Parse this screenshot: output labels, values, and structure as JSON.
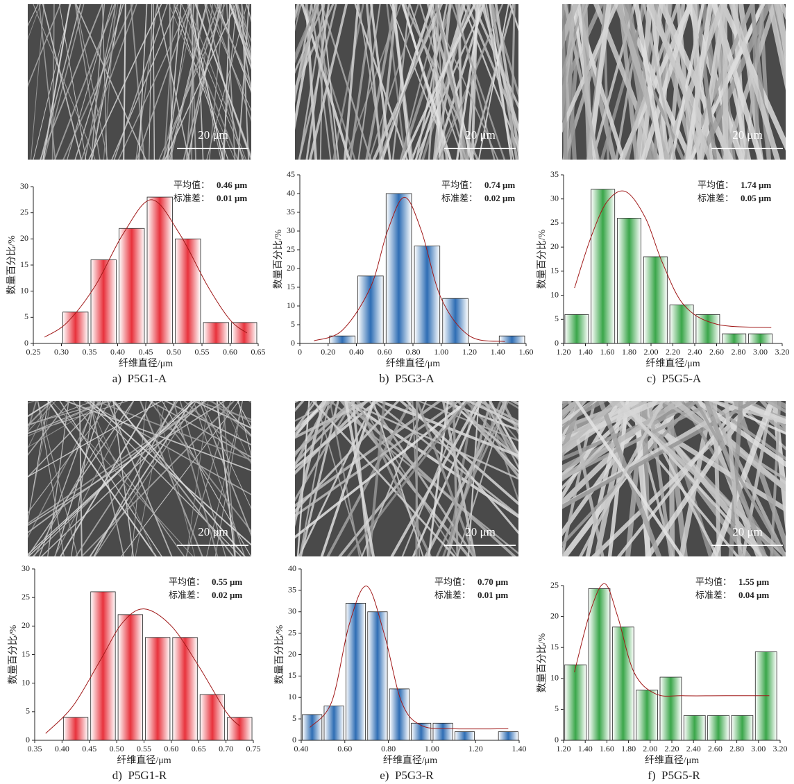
{
  "chart_data": [
    {
      "type": "histogram",
      "caption": "a)  P5G1-A",
      "scale_bar": "20 μm",
      "xlabel": "纤维直径/μm",
      "ylabel": "数量百分比/%",
      "annotations": {
        "mean_label": "平均值：",
        "mean": "0.46 μm",
        "sd_label": "标准差：",
        "sd": "0.01 μm"
      },
      "color": "#e8323c",
      "bins": [
        0.3,
        0.35,
        0.4,
        0.45,
        0.5,
        0.55,
        0.6,
        0.65
      ],
      "values": [
        6,
        16,
        22,
        28,
        20,
        4,
        4
      ],
      "fit": {
        "x": [
          0.27,
          0.31,
          0.36,
          0.41,
          0.46,
          0.51,
          0.56,
          0.6,
          0.63
        ],
        "y": [
          1.2,
          4,
          11,
          21,
          27.5,
          21,
          11,
          4.5,
          2
        ]
      },
      "xlim": [
        0.25,
        0.65
      ],
      "xticks": [
        0.25,
        {
          "value": 0.3,
          "label": "0.30"
        },
        0.35,
        {
          "value": 0.4,
          "label": "0.40"
        },
        0.45,
        {
          "value": 0.5,
          "label": "0.50"
        },
        0.55,
        {
          "value": 0.6,
          "label": "0.60"
        },
        0.65
      ],
      "ylim": [
        0,
        30
      ],
      "yticks": [
        0,
        5,
        10,
        15,
        20,
        25,
        30
      ]
    },
    {
      "type": "histogram",
      "caption": "b)  P5G3-A",
      "scale_bar": "20 μm",
      "xlabel": "纤维直径/μm",
      "ylabel": "数量百分比/%",
      "annotations": {
        "mean_label": "平均值：",
        "mean": "0.74 μm",
        "sd_label": "标准差：",
        "sd": "0.02 μm"
      },
      "color": "#2e6db4",
      "bins": [
        0.2,
        0.4,
        0.6,
        0.8,
        1.0,
        1.2,
        1.4,
        1.6
      ],
      "values": [
        2,
        18,
        40,
        26,
        12,
        0,
        2
      ],
      "fit": {
        "x": [
          0.1,
          0.3,
          0.5,
          0.62,
          0.74,
          0.86,
          1.0,
          1.2,
          1.45
        ],
        "y": [
          0.7,
          3.5,
          15,
          30,
          39,
          30,
          12,
          2,
          0.5
        ]
      },
      "xlim": [
        0,
        1.6
      ],
      "xticks": [
        0,
        {
          "value": 0.2,
          "label": "0.20"
        },
        {
          "value": 0.4,
          "label": "0.40"
        },
        {
          "value": 0.6,
          "label": "0.60"
        },
        {
          "value": 0.8,
          "label": "0.80"
        },
        {
          "value": 1.0,
          "label": "1.00"
        },
        {
          "value": 1.2,
          "label": "1.20"
        },
        {
          "value": 1.4,
          "label": "1.40"
        },
        {
          "value": 1.6,
          "label": "1.60"
        }
      ],
      "ylim": [
        0,
        45
      ],
      "yticks": [
        0,
        5,
        10,
        15,
        20,
        25,
        30,
        35,
        40,
        45
      ]
    },
    {
      "type": "histogram",
      "caption": "c)  P5G5-A",
      "scale_bar": "20 μm",
      "xlabel": "纤维直径/μm",
      "ylabel": "数量百分比/%",
      "annotations": {
        "mean_label": "平均值：",
        "mean": "1.74 μm",
        "sd_label": "标准差：",
        "sd": "0.05 μm"
      },
      "color": "#3aa64a",
      "bins": [
        1.2,
        1.44,
        1.68,
        1.92,
        2.16,
        2.4,
        2.64,
        2.88,
        3.12
      ],
      "values": [
        6,
        32,
        26,
        18,
        8,
        6,
        2,
        2
      ],
      "fit": {
        "x": [
          1.3,
          1.45,
          1.6,
          1.77,
          1.95,
          2.1,
          2.3,
          2.6,
          3.1
        ],
        "y": [
          11.5,
          22,
          29.5,
          31.5,
          26,
          17,
          8,
          4,
          3.3
        ]
      },
      "xlim": [
        1.2,
        3.2
      ],
      "xticks": [
        {
          "value": 1.2,
          "label": "1.20"
        },
        {
          "value": 1.4,
          "label": "1.40"
        },
        {
          "value": 1.6,
          "label": "1.60"
        },
        {
          "value": 1.8,
          "label": "1.80"
        },
        {
          "value": 2.0,
          "label": "2.00"
        },
        {
          "value": 2.2,
          "label": "2.20"
        },
        {
          "value": 2.4,
          "label": "2.40"
        },
        {
          "value": 2.6,
          "label": "2.60"
        },
        {
          "value": 2.8,
          "label": "2.80"
        },
        {
          "value": 3.0,
          "label": "3.00"
        },
        {
          "value": 3.2,
          "label": "3.20"
        }
      ],
      "ylim": [
        0,
        35
      ],
      "yticks": [
        0,
        5,
        10,
        15,
        20,
        25,
        30,
        35
      ]
    },
    {
      "type": "histogram",
      "caption": "d)  P5G1-R",
      "scale_bar": "20 μm",
      "xlabel": "纤维直径/μm",
      "ylabel": "数量百分比/%",
      "annotations": {
        "mean_label": "平均值：",
        "mean": "0.55 μm",
        "sd_label": "标准差：",
        "sd": "0.02 μm"
      },
      "color": "#e8323c",
      "bins": [
        0.4,
        0.45,
        0.5,
        0.55,
        0.6,
        0.65,
        0.7,
        0.75
      ],
      "values": [
        4,
        26,
        22,
        18,
        18,
        8,
        4
      ],
      "fit": {
        "x": [
          0.37,
          0.42,
          0.47,
          0.51,
          0.55,
          0.6,
          0.65,
          0.7,
          0.725
        ],
        "y": [
          1.2,
          6,
          14,
          20.5,
          23,
          20,
          13,
          5,
          2.5
        ]
      },
      "xlim": [
        0.35,
        0.75
      ],
      "xticks": [
        0.35,
        {
          "value": 0.4,
          "label": "0.40"
        },
        0.45,
        {
          "value": 0.5,
          "label": "0.50"
        },
        0.55,
        {
          "value": 0.6,
          "label": "0.60"
        },
        0.65,
        {
          "value": 0.7,
          "label": "0.70"
        },
        0.75
      ],
      "ylim": [
        0,
        30
      ],
      "yticks": [
        0,
        5,
        10,
        15,
        20,
        25,
        30
      ]
    },
    {
      "type": "histogram",
      "caption": "e)  P5G3-R",
      "scale_bar": "20 μm",
      "xlabel": "纤维直径/μm",
      "ylabel": "数量百分比/%",
      "annotations": {
        "mean_label": "平均值：",
        "mean": "0.70 μm",
        "sd_label": "标准差：",
        "sd": "0.01 μm"
      },
      "color": "#2e6db4",
      "bins": [
        0.4,
        0.5,
        0.6,
        0.7,
        0.8,
        0.9,
        1.0,
        1.1,
        1.2,
        1.3,
        1.4
      ],
      "values": [
        6,
        8,
        32,
        30,
        12,
        4,
        4,
        2,
        0,
        2
      ],
      "fit": {
        "x": [
          0.44,
          0.54,
          0.62,
          0.7,
          0.78,
          0.86,
          0.95,
          1.1,
          1.35
        ],
        "y": [
          3,
          9,
          27,
          36,
          25,
          9,
          3.5,
          2.7,
          2.7
        ]
      },
      "xlim": [
        0.4,
        1.4
      ],
      "xticks": [
        {
          "value": 0.4,
          "label": "0.40"
        },
        {
          "value": 0.6,
          "label": "0.60"
        },
        {
          "value": 0.8,
          "label": "0.80"
        },
        {
          "value": 1.0,
          "label": "1.00"
        },
        {
          "value": 1.2,
          "label": "1.20"
        },
        {
          "value": 1.4,
          "label": "1.40"
        }
      ],
      "ylim": [
        0,
        40
      ],
      "yticks": [
        0,
        5,
        10,
        15,
        20,
        25,
        30,
        35,
        40
      ]
    },
    {
      "type": "histogram",
      "caption": "f)  P5G5-R",
      "scale_bar": "20 μm",
      "xlabel": "纤维直径/μm",
      "ylabel": "数量百分比/%",
      "annotations": {
        "mean_label": "平均值：",
        "mean": "1.55 μm",
        "sd_label": "标准差：",
        "sd": "0.04 μm"
      },
      "color": "#3aa64a",
      "bins": [
        1.2,
        1.42,
        1.64,
        1.86,
        2.08,
        2.3,
        2.52,
        2.74,
        2.96,
        3.18
      ],
      "values": [
        12.2,
        24.5,
        18.3,
        8.1,
        10.2,
        4,
        4,
        4,
        14.3
      ],
      "fit": {
        "x": [
          1.3,
          1.45,
          1.58,
          1.7,
          1.85,
          2.05,
          2.3,
          2.7,
          3.1
        ],
        "y": [
          11,
          21,
          25.3,
          20,
          11,
          7.5,
          7.2,
          7.2,
          7.2
        ]
      },
      "xlim": [
        1.2,
        3.2
      ],
      "xticks": [
        {
          "value": 1.2,
          "label": "1.20"
        },
        {
          "value": 1.4,
          "label": "1.40"
        },
        {
          "value": 1.6,
          "label": "1.60"
        },
        {
          "value": 1.8,
          "label": "1.80"
        },
        {
          "value": 2.0,
          "label": "2.00"
        },
        {
          "value": 2.2,
          "label": "2.20"
        },
        {
          "value": 2.4,
          "label": "2.40"
        },
        {
          "value": 2.6,
          "label": "2.60"
        },
        {
          "value": 2.8,
          "label": "2.80"
        },
        {
          "value": 3.0,
          "label": "3.00"
        },
        {
          "value": 3.2,
          "label": "3.20"
        }
      ],
      "ylim": [
        0,
        25
      ],
      "yticks": [
        0,
        5,
        10,
        15,
        20,
        25
      ]
    }
  ]
}
